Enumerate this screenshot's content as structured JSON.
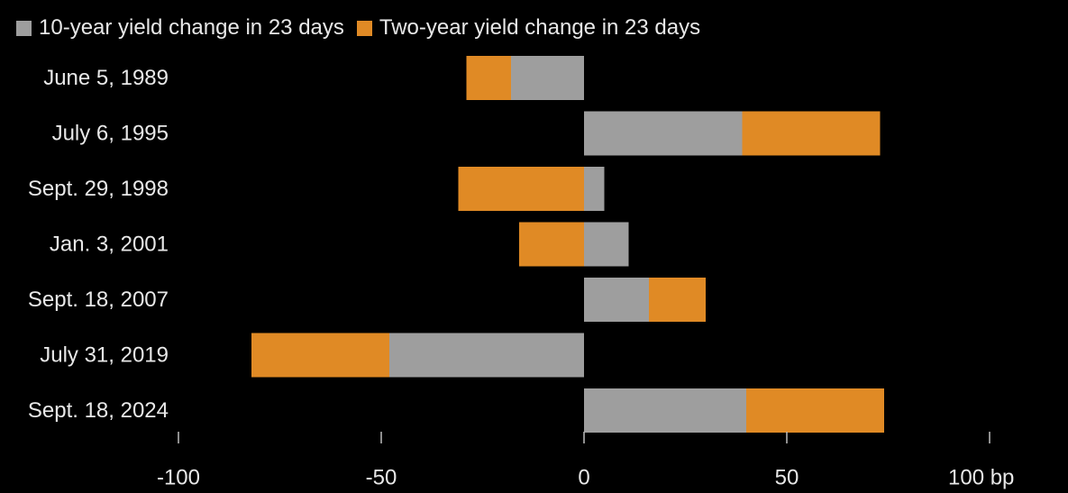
{
  "chart_data": {
    "type": "bar",
    "orientation": "horizontal",
    "stacked": true,
    "title": "",
    "xlabel": "",
    "ylabel": "",
    "xlim": [
      -100,
      100
    ],
    "x_unit": "bp",
    "x_ticks": [
      -100,
      -50,
      0,
      50,
      100
    ],
    "x_tick_labels": [
      "-100",
      "-50",
      "0",
      "50",
      "100 bp"
    ],
    "grid": false,
    "legend_position": "top-left",
    "categories": [
      "June 5, 1989",
      "July 6, 1995",
      "Sept. 29, 1998",
      "Jan. 3, 2001",
      "Sept. 18, 2007",
      "July 31, 2019",
      "Sept. 18, 2024"
    ],
    "series": [
      {
        "name": "10-year yield change in 23 days",
        "color": "#9e9e9e",
        "values": [
          -18,
          39,
          5,
          11,
          16,
          -48,
          40
        ]
      },
      {
        "name": "Two-year yield change in 23 days",
        "color": "#e08a25",
        "values": [
          -11,
          34,
          -31,
          -16,
          14,
          -34,
          34
        ]
      }
    ]
  }
}
